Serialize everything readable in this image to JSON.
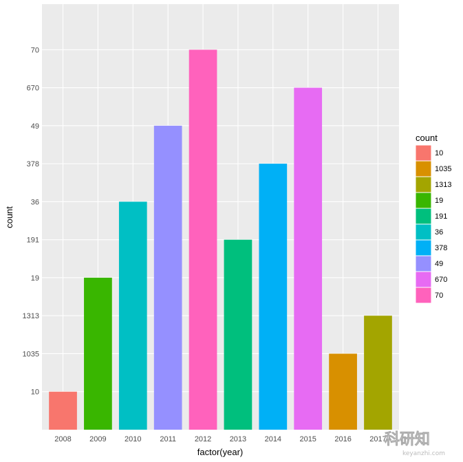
{
  "chart_data": {
    "type": "bar",
    "categories": [
      "2008",
      "2009",
      "2010",
      "2011",
      "2012",
      "2013",
      "2014",
      "2015",
      "2016",
      "2017"
    ],
    "values": [
      "10",
      "19",
      "36",
      "49",
      "70",
      "191",
      "378",
      "670",
      "1035",
      "1313"
    ],
    "y_scale": "categorical (discrete count labels)",
    "y_levels": [
      "10",
      "1035",
      "1313",
      "19",
      "191",
      "36",
      "378",
      "49",
      "670",
      "70"
    ],
    "xlabel": "factor(year)",
    "ylabel": "count",
    "grid": true,
    "legend": {
      "title": "count",
      "placement": "right",
      "entries": [
        {
          "label": "10",
          "color": "#F8766D"
        },
        {
          "label": "1035",
          "color": "#D89000"
        },
        {
          "label": "1313",
          "color": "#A3A500"
        },
        {
          "label": "19",
          "color": "#39B600"
        },
        {
          "label": "191",
          "color": "#00BF7D"
        },
        {
          "label": "36",
          "color": "#00BFC4"
        },
        {
          "label": "378",
          "color": "#00B0F6"
        },
        {
          "label": "49",
          "color": "#9590FF"
        },
        {
          "label": "670",
          "color": "#E76BF3"
        },
        {
          "label": "70",
          "color": "#FF62BC"
        }
      ]
    },
    "panel_background": "#EBEBEB",
    "grid_color": "#FFFFFF"
  },
  "watermark": {
    "text": "科研知",
    "subtext": "keyanzhi.com"
  }
}
